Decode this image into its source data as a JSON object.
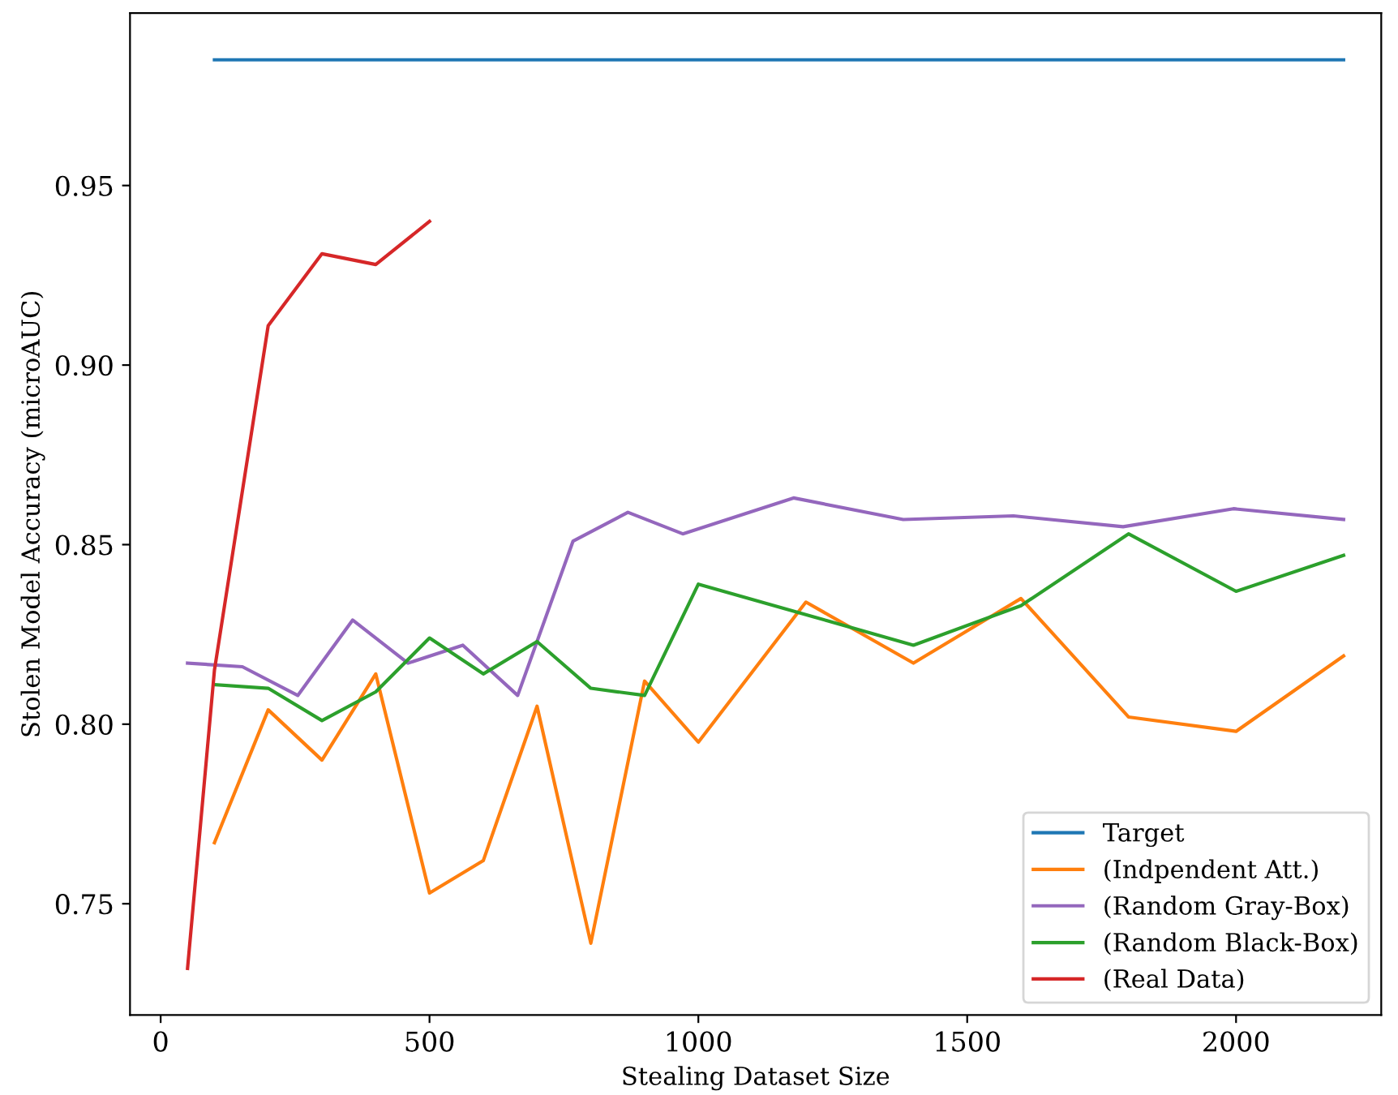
{
  "chart_data": {
    "type": "line",
    "xlabel": "Stealing Dataset Size",
    "ylabel": "Stolen Model Accuracy (microAUC)",
    "xlim": [
      -57,
      2270
    ],
    "xticks": [
      0,
      500,
      1000,
      1500,
      2000
    ],
    "ylim": [
      0.719,
      0.998
    ],
    "yticks": [
      {
        "value": 0.75,
        "label": "0.75"
      },
      {
        "value": 0.8,
        "label": "0.80"
      },
      {
        "value": 0.85,
        "label": "0.85"
      },
      {
        "value": 0.9,
        "label": "0.90"
      },
      {
        "value": 0.95,
        "label": "0.95"
      }
    ],
    "grid": false,
    "legend": "bottom right",
    "marker": "none",
    "line_style": "solid",
    "series": [
      {
        "name": "Target",
        "color": "#1f77b4",
        "x": [
          100,
          2200
        ],
        "values": [
          0.985,
          0.985
        ]
      },
      {
        "name": "(Indpendent Att.)",
        "color": "#ff7f0e",
        "x": [
          100,
          200,
          300,
          400,
          500,
          600,
          700,
          800,
          900,
          1000,
          1200,
          1400,
          1600,
          1800,
          2000,
          2200
        ],
        "values": [
          0.767,
          0.804,
          0.79,
          0.814,
          0.753,
          0.762,
          0.805,
          0.739,
          0.812,
          0.795,
          0.834,
          0.817,
          0.835,
          0.802,
          0.798,
          0.819
        ]
      },
      {
        "name": "(Random Gray-Box)",
        "color": "#9467bd",
        "x": [
          50,
          152,
          255,
          357,
          460,
          562,
          664,
          767,
          869,
          971,
          1177,
          1381,
          1586,
          1790,
          1995,
          2200
        ],
        "values": [
          0.817,
          0.816,
          0.808,
          0.829,
          0.817,
          0.822,
          0.808,
          0.851,
          0.859,
          0.853,
          0.863,
          0.857,
          0.858,
          0.855,
          0.86,
          0.857
        ]
      },
      {
        "name": "(Random Black-Box)",
        "color": "#2ca02c",
        "x": [
          100,
          200,
          300,
          400,
          500,
          600,
          700,
          800,
          900,
          1000,
          1400,
          1600,
          1800,
          2000,
          2200
        ],
        "values": [
          0.811,
          0.81,
          0.801,
          0.809,
          0.824,
          0.814,
          0.823,
          0.81,
          0.808,
          0.839,
          0.822,
          0.833,
          0.853,
          0.837,
          0.847
        ]
      },
      {
        "name": "(Real Data)",
        "color": "#d62728",
        "x": [
          50,
          100,
          200,
          300,
          400,
          500
        ],
        "values": [
          0.732,
          0.815,
          0.911,
          0.931,
          0.928,
          0.94
        ]
      }
    ]
  }
}
